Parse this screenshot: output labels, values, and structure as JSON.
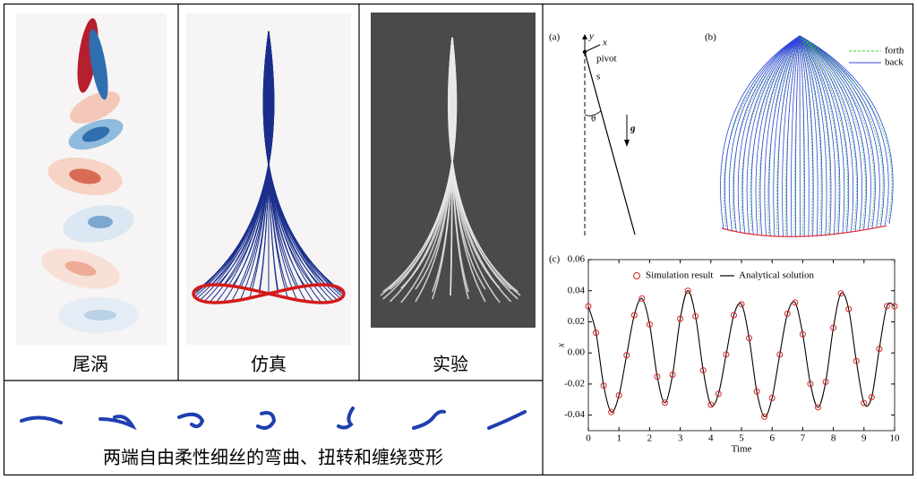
{
  "panels": {
    "wake": {
      "caption": "尾涡"
    },
    "simulation": {
      "caption": "仿真"
    },
    "experiment": {
      "caption": "实验"
    }
  },
  "bottom_caption": "两端自由柔性细丝的弯曲、扭转和缠绕变形",
  "diagram_a": {
    "label": "(a)",
    "y": "y",
    "x": "x",
    "pivot": "pivot",
    "s": "s",
    "theta": "θ",
    "g": "g"
  },
  "panel_b": {
    "label": "(b)",
    "legend": [
      {
        "name": "forth",
        "color": "#33cc33"
      },
      {
        "name": "back",
        "color": "#3344dd"
      }
    ]
  },
  "chart_data": {
    "type": "line",
    "panel_label": "(c)",
    "xlabel": "Time",
    "ylabel": "x",
    "xlim": [
      0,
      10
    ],
    "ylim": [
      -0.05,
      0.06
    ],
    "xticks": [
      0,
      1,
      2,
      3,
      4,
      5,
      6,
      7,
      8,
      9,
      10
    ],
    "yticks": [
      -0.04,
      -0.02,
      {
        "value": 0,
        "label": "0.00"
      },
      0.02,
      0.04,
      0.06
    ],
    "x": [
      0,
      0.25,
      0.5,
      0.75,
      1,
      1.25,
      1.5,
      1.75,
      2,
      2.25,
      2.5,
      2.75,
      3,
      3.25,
      3.5,
      3.75,
      4,
      4.25,
      4.5,
      4.75,
      5,
      5.25,
      5.5,
      5.75,
      6,
      6.25,
      6.5,
      6.75,
      7,
      7.25,
      7.5,
      7.75,
      8,
      8.25,
      8.5,
      8.75,
      9,
      9.25,
      9.5,
      9.75,
      10
    ],
    "series": [
      {
        "name": "Simulation result",
        "color": "#dd2222",
        "marker": "circle",
        "values": [
          0.03,
          0.013,
          -0.021,
          -0.038,
          -0.0273,
          -0.0015,
          0.0243,
          0.035,
          0.0183,
          -0.0153,
          -0.032,
          -0.014,
          0.022,
          0.04,
          0.0236,
          -0.0112,
          -0.0333,
          -0.0263,
          -0.001,
          0.0243,
          0.0313,
          0.0095,
          -0.0248,
          -0.041,
          -0.029,
          -0.001,
          0.0252,
          0.0324,
          0.012,
          -0.0199,
          -0.035,
          -0.0186,
          0.0162,
          0.0383,
          0.0282,
          -0.0052,
          -0.0322,
          -0.0285,
          0.0026,
          0.0301,
          0.03
        ]
      },
      {
        "name": "Analytical solution",
        "color": "#000000",
        "marker": "line",
        "values": [
          0.03,
          0.013,
          -0.021,
          -0.038,
          -0.0273,
          -0.0015,
          0.0243,
          0.035,
          0.0183,
          -0.0153,
          -0.032,
          -0.014,
          0.022,
          0.04,
          0.0236,
          -0.0112,
          -0.0333,
          -0.0263,
          -0.001,
          0.0243,
          0.0313,
          0.0095,
          -0.0248,
          -0.041,
          -0.029,
          -0.001,
          0.0252,
          0.0324,
          0.012,
          -0.0199,
          -0.035,
          -0.0186,
          0.0162,
          0.0383,
          0.0282,
          -0.0052,
          -0.0322,
          -0.0285,
          0.0026,
          0.0301,
          0.03
        ]
      }
    ]
  }
}
